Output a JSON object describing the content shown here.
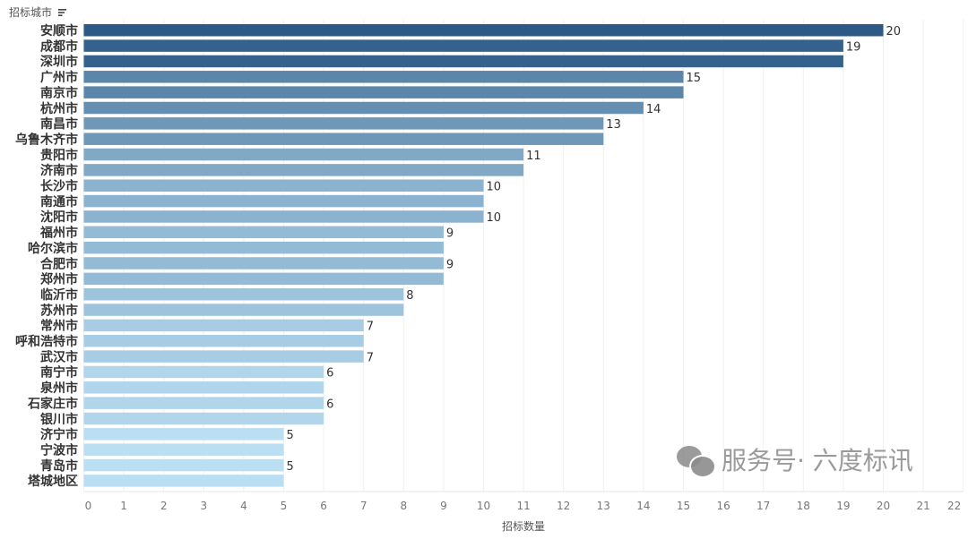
{
  "chart_data": {
    "type": "bar",
    "orientation": "horizontal",
    "ytitle": "招标城市",
    "xlabel": "招标数量",
    "xlim": [
      0,
      22
    ],
    "xticks": [
      0,
      1,
      2,
      3,
      4,
      5,
      6,
      7,
      8,
      9,
      10,
      11,
      12,
      13,
      14,
      15,
      16,
      17,
      18,
      19,
      20,
      21,
      22
    ],
    "grid": true,
    "categories": [
      "安顺市",
      "成都市",
      "深圳市",
      "广州市",
      "南京市",
      "杭州市",
      "南昌市",
      "乌鲁木齐市",
      "贵阳市",
      "济南市",
      "长沙市",
      "南通市",
      "沈阳市",
      "福州市",
      "哈尔滨市",
      "合肥市",
      "郑州市",
      "临沂市",
      "苏州市",
      "常州市",
      "呼和浩特市",
      "武汉市",
      "南宁市",
      "泉州市",
      "石家庄市",
      "银川市",
      "济宁市",
      "宁波市",
      "青岛市",
      "塔城地区"
    ],
    "values": [
      20,
      19,
      19,
      15,
      15,
      14,
      13,
      13,
      11,
      11,
      10,
      10,
      10,
      9,
      9,
      9,
      9,
      8,
      8,
      7,
      7,
      7,
      6,
      6,
      6,
      6,
      5,
      5,
      5,
      5
    ],
    "labels_shown": [
      true,
      true,
      false,
      true,
      false,
      true,
      true,
      false,
      true,
      false,
      true,
      false,
      true,
      true,
      false,
      true,
      false,
      true,
      false,
      true,
      false,
      true,
      true,
      false,
      true,
      false,
      true,
      false,
      true,
      false
    ],
    "color_dark": "#2c5985",
    "color_light": "#badef2"
  },
  "watermark": {
    "text": "服务号· 六度标讯",
    "icon": "wechat-icon"
  }
}
